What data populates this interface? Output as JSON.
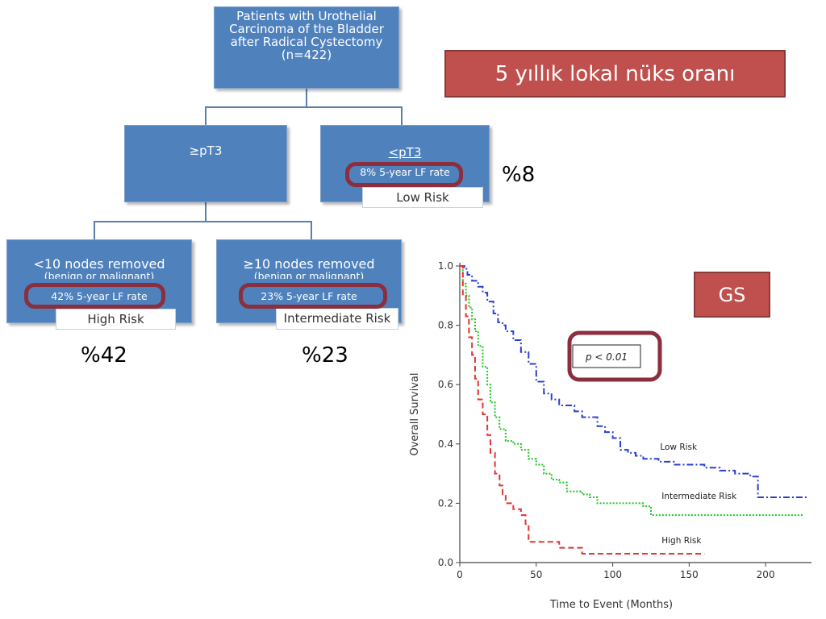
{
  "flowchart": {
    "root": {
      "lines": [
        "Patients with Urothelial",
        "Carcinoma of the Bladder",
        "after Radical Cystectomy",
        "(n=422)"
      ]
    },
    "left_branch": {
      "label": "≥pT3"
    },
    "right_branch": {
      "label": "<pT3",
      "rate": "8% 5-year LF rate",
      "risk": "Low Risk"
    },
    "node_few": {
      "title": "<10 nodes removed",
      "subtitle": "(benign or malignant)",
      "rate": "42% 5-year LF rate",
      "risk": "High Risk"
    },
    "node_many": {
      "title": "≥10 nodes removed",
      "subtitle": "(benign or malignant)",
      "rate": "23% 5-year LF rate",
      "risk": "Intermediate Risk"
    }
  },
  "callouts": {
    "banner_title": "5 yıllık lokal nüks oranı",
    "pct_low": "%8",
    "pct_high": "%42",
    "pct_intermediate": "%23",
    "gs_label": "GS"
  },
  "colors": {
    "box_blue": "#4f81bd",
    "banner_red": "#c0504d",
    "highlight": "#8b2e3d",
    "low_risk": "#2b3fd1",
    "intermediate_risk": "#1fc41f",
    "high_risk": "#e3342f"
  },
  "chart_data": {
    "type": "line",
    "title": "",
    "xlabel": "Time to Event (Months)",
    "ylabel": "Overall Survival",
    "xlim": [
      0,
      230
    ],
    "ylim": [
      0,
      1.0
    ],
    "xticks": [
      0,
      50,
      100,
      150,
      200
    ],
    "yticks": [
      0.0,
      0.2,
      0.4,
      0.6,
      0.8,
      1.0
    ],
    "annotation": "p < 0.01",
    "grid": false,
    "series": [
      {
        "name": "Low Risk",
        "style": "dash-dot",
        "color": "#2b3fd1",
        "x": [
          0,
          3,
          5,
          8,
          12,
          15,
          18,
          22,
          25,
          28,
          30,
          35,
          40,
          45,
          50,
          55,
          60,
          65,
          70,
          75,
          80,
          85,
          90,
          95,
          100,
          105,
          110,
          115,
          120,
          130,
          140,
          150,
          160,
          170,
          180,
          190,
          195,
          200,
          210,
          220,
          228
        ],
        "y": [
          1.0,
          0.99,
          0.97,
          0.95,
          0.93,
          0.91,
          0.88,
          0.84,
          0.81,
          0.8,
          0.78,
          0.75,
          0.71,
          0.67,
          0.61,
          0.57,
          0.55,
          0.53,
          0.53,
          0.51,
          0.49,
          0.49,
          0.46,
          0.44,
          0.42,
          0.38,
          0.37,
          0.36,
          0.35,
          0.34,
          0.33,
          0.33,
          0.32,
          0.31,
          0.3,
          0.29,
          0.22,
          0.22,
          0.22,
          0.22,
          0.22
        ]
      },
      {
        "name": "Intermediate Risk",
        "style": "dotted",
        "color": "#1fc41f",
        "x": [
          0,
          2,
          4,
          6,
          8,
          10,
          12,
          15,
          18,
          20,
          23,
          26,
          30,
          35,
          40,
          45,
          50,
          55,
          60,
          65,
          70,
          75,
          80,
          85,
          90,
          100,
          110,
          120,
          125,
          130,
          150,
          170,
          190,
          210,
          225
        ],
        "y": [
          1.0,
          0.94,
          0.9,
          0.86,
          0.82,
          0.78,
          0.73,
          0.66,
          0.6,
          0.54,
          0.49,
          0.45,
          0.41,
          0.4,
          0.38,
          0.35,
          0.33,
          0.3,
          0.28,
          0.27,
          0.24,
          0.24,
          0.23,
          0.22,
          0.2,
          0.2,
          0.2,
          0.19,
          0.16,
          0.16,
          0.16,
          0.16,
          0.16,
          0.16,
          0.16
        ]
      },
      {
        "name": "High Risk",
        "style": "dashed",
        "color": "#e3342f",
        "x": [
          0,
          2,
          4,
          6,
          8,
          10,
          12,
          15,
          18,
          20,
          23,
          26,
          28,
          30,
          35,
          40,
          43,
          45,
          50,
          55,
          60,
          65,
          70,
          80,
          85,
          90,
          100,
          120,
          140,
          160
        ],
        "y": [
          1.0,
          0.9,
          0.83,
          0.76,
          0.7,
          0.62,
          0.55,
          0.5,
          0.43,
          0.37,
          0.3,
          0.26,
          0.23,
          0.2,
          0.18,
          0.16,
          0.13,
          0.07,
          0.07,
          0.07,
          0.07,
          0.05,
          0.05,
          0.03,
          0.03,
          0.03,
          0.03,
          0.03,
          0.03,
          0.03
        ]
      }
    ]
  }
}
